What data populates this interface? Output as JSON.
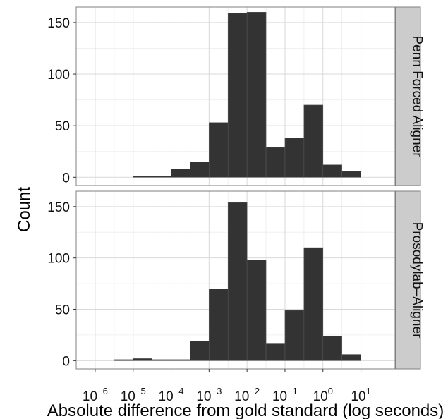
{
  "chart_data": {
    "type": "bar",
    "x_scale": "log10",
    "xlabel": "Absolute difference from gold standard (log seconds)",
    "ylabel": "Count",
    "x_tick_exponents": [
      -6,
      -5,
      -4,
      -3,
      -2,
      -1,
      0,
      1
    ],
    "x_tick_base": "10",
    "xlim_log10": [
      -6.5,
      1.9
    ],
    "ylim": [
      -8,
      165
    ],
    "y_ticks": [
      0,
      50,
      100,
      150
    ],
    "grid": true,
    "bar_color": "#333333",
    "panels": [
      {
        "label": "Penn Forced Aligner",
        "bins_log10": [
          {
            "from": -5.0,
            "to": -4.5,
            "count": 1
          },
          {
            "from": -4.5,
            "to": -4.0,
            "count": 1
          },
          {
            "from": -4.0,
            "to": -3.5,
            "count": 8
          },
          {
            "from": -3.5,
            "to": -3.0,
            "count": 15
          },
          {
            "from": -3.0,
            "to": -2.5,
            "count": 53
          },
          {
            "from": -2.5,
            "to": -2.0,
            "count": 159
          },
          {
            "from": -2.0,
            "to": -1.5,
            "count": 160
          },
          {
            "from": -1.5,
            "to": -1.0,
            "count": 29
          },
          {
            "from": -1.0,
            "to": -0.5,
            "count": 38
          },
          {
            "from": -0.5,
            "to": 0.0,
            "count": 70
          },
          {
            "from": 0.0,
            "to": 0.5,
            "count": 12
          },
          {
            "from": 0.5,
            "to": 1.0,
            "count": 6
          }
        ]
      },
      {
        "label": "Prosodylab–Aligner",
        "bins_log10": [
          {
            "from": -5.5,
            "to": -5.0,
            "count": 1
          },
          {
            "from": -5.0,
            "to": -4.5,
            "count": 2
          },
          {
            "from": -4.5,
            "to": -4.0,
            "count": 1
          },
          {
            "from": -4.0,
            "to": -3.5,
            "count": 1
          },
          {
            "from": -3.5,
            "to": -3.0,
            "count": 19
          },
          {
            "from": -3.0,
            "to": -2.5,
            "count": 70
          },
          {
            "from": -2.5,
            "to": -2.0,
            "count": 154
          },
          {
            "from": -2.0,
            "to": -1.5,
            "count": 98
          },
          {
            "from": -1.5,
            "to": -1.0,
            "count": 17
          },
          {
            "from": -1.0,
            "to": -0.5,
            "count": 49
          },
          {
            "from": -0.5,
            "to": 0.0,
            "count": 110
          },
          {
            "from": 0.0,
            "to": 0.5,
            "count": 24
          },
          {
            "from": 0.5,
            "to": 1.0,
            "count": 6
          }
        ]
      }
    ]
  }
}
